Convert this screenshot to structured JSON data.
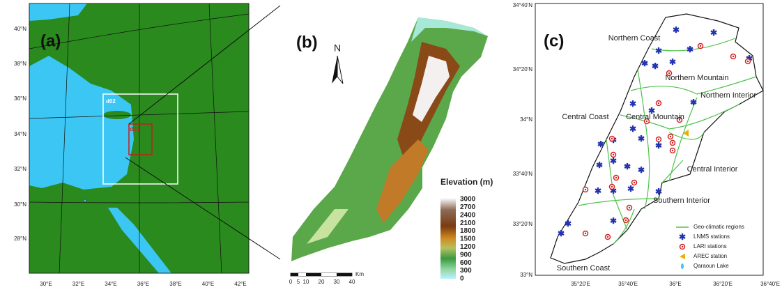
{
  "panel_a": {
    "label": "(a)",
    "lat_labels": [
      "40°N",
      "38°N",
      "36°N",
      "34°N",
      "32°N",
      "30°N",
      "28°N"
    ],
    "lon_labels": [
      "30°E",
      "32°E",
      "34°E",
      "36°E",
      "38°E",
      "40°E",
      "42°E"
    ],
    "domains": [
      "d02",
      "d03"
    ]
  },
  "panel_b": {
    "label": "(b)",
    "north": "N",
    "legend_title": "Elevation (m)",
    "legend_values": [
      3000,
      2700,
      2400,
      2100,
      1800,
      1500,
      1200,
      900,
      600,
      300,
      0
    ],
    "scale_values": [
      0,
      5,
      10,
      20,
      30,
      40
    ],
    "scale_unit": "Km"
  },
  "panel_c": {
    "label": "(c)",
    "lat_labels": [
      "34°40'N",
      "34°20'N",
      "34°N",
      "33°40'N",
      "33°20'N",
      "33°N"
    ],
    "lon_labels": [
      "35°20'E",
      "35°40'E",
      "36°E",
      "36°20'E",
      "36°40'E"
    ],
    "regions": [
      "Northern Coast",
      "Northern Mountain",
      "Northern Interior",
      "Central Coast",
      "Central Mountain",
      "Central Interior",
      "Southern Interior",
      "Southern Coast"
    ],
    "legend": [
      "Geo-climatic regions",
      "LNMS stations",
      "LARI stations",
      "AREC station",
      "Qaraoun Lake"
    ]
  }
}
